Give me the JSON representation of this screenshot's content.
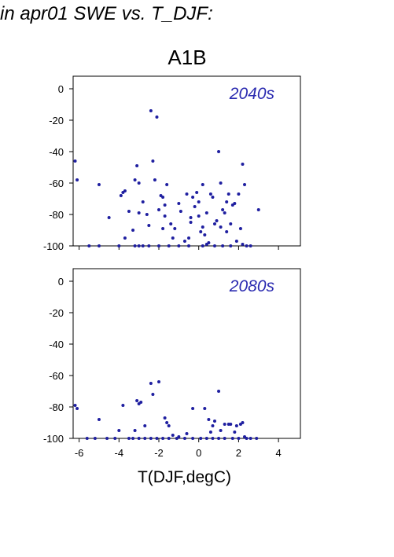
{
  "header": {
    "title": "in apr01 SWE vs. T_DJF:",
    "scenario": "A1B"
  },
  "chart_data": [
    {
      "type": "scatter",
      "panel_label": "2040s",
      "xlim": [
        -6.3,
        5.1
      ],
      "ylim": [
        -100,
        8
      ],
      "yticks": [
        0,
        -20,
        -40,
        -60,
        -80,
        -100
      ],
      "xticks": [
        -6,
        -4,
        -2,
        0,
        2,
        4
      ],
      "show_x_tick_labels": false,
      "xlabel": "",
      "ylabel": "",
      "grid": false,
      "marker_color": "#1f1fa0",
      "label_color": "#2a2ab0",
      "points": [
        [
          -6.2,
          -46
        ],
        [
          -6.1,
          -58
        ],
        [
          -5.0,
          -61
        ],
        [
          -4.5,
          -82
        ],
        [
          -3.9,
          -68
        ],
        [
          -3.8,
          -66
        ],
        [
          -3.7,
          -65
        ],
        [
          -3.7,
          -95
        ],
        [
          -3.5,
          -78
        ],
        [
          -3.3,
          -90
        ],
        [
          -3.2,
          -58
        ],
        [
          -3.1,
          -49
        ],
        [
          -3.0,
          -60
        ],
        [
          -3.0,
          -79
        ],
        [
          -2.8,
          -72
        ],
        [
          -2.6,
          -80
        ],
        [
          -2.5,
          -87
        ],
        [
          -2.4,
          -14
        ],
        [
          -2.3,
          -46
        ],
        [
          -2.2,
          -58
        ],
        [
          -2.1,
          -18
        ],
        [
          -2.0,
          -77
        ],
        [
          -1.9,
          -68
        ],
        [
          -1.8,
          -69
        ],
        [
          -1.8,
          -89
        ],
        [
          -1.7,
          -74
        ],
        [
          -1.7,
          -81
        ],
        [
          -1.6,
          -61
        ],
        [
          -1.4,
          -86
        ],
        [
          -1.3,
          -95
        ],
        [
          -1.2,
          -89
        ],
        [
          -1.0,
          -73
        ],
        [
          -0.9,
          -78
        ],
        [
          -0.7,
          -97
        ],
        [
          -0.6,
          -67
        ],
        [
          -0.5,
          -95
        ],
        [
          -0.4,
          -85
        ],
        [
          -0.4,
          -82
        ],
        [
          -0.3,
          -69
        ],
        [
          -0.2,
          -75
        ],
        [
          -0.1,
          -66
        ],
        [
          0.0,
          -81
        ],
        [
          0.0,
          -72
        ],
        [
          0.1,
          -91
        ],
        [
          0.2,
          -61
        ],
        [
          0.2,
          -88
        ],
        [
          0.3,
          -93
        ],
        [
          0.4,
          -79
        ],
        [
          0.5,
          -98
        ],
        [
          0.6,
          -67
        ],
        [
          0.7,
          -69
        ],
        [
          0.8,
          -86
        ],
        [
          0.9,
          -84
        ],
        [
          1.0,
          -40
        ],
        [
          1.1,
          -60
        ],
        [
          1.1,
          -88
        ],
        [
          1.2,
          -77
        ],
        [
          1.3,
          -79
        ],
        [
          1.4,
          -72
        ],
        [
          1.4,
          -91
        ],
        [
          1.5,
          -67
        ],
        [
          1.6,
          -86
        ],
        [
          1.7,
          -74
        ],
        [
          1.8,
          -73
        ],
        [
          1.9,
          -97
        ],
        [
          2.0,
          -67
        ],
        [
          2.1,
          -89
        ],
        [
          2.2,
          -48
        ],
        [
          2.3,
          -61
        ],
        [
          2.4,
          -100
        ],
        [
          2.6,
          -100
        ],
        [
          3.0,
          -77
        ],
        [
          -5.5,
          -100
        ],
        [
          -5.0,
          -100
        ],
        [
          -4.0,
          -100
        ],
        [
          -3.2,
          -100
        ],
        [
          -3.0,
          -100
        ],
        [
          -2.8,
          -100
        ],
        [
          -2.5,
          -100
        ],
        [
          -2.0,
          -100
        ],
        [
          -1.5,
          -100
        ],
        [
          -1.0,
          -100
        ],
        [
          -0.5,
          -100
        ],
        [
          0.2,
          -100
        ],
        [
          0.4,
          -99
        ],
        [
          0.8,
          -100
        ],
        [
          1.2,
          -100
        ],
        [
          1.6,
          -100
        ],
        [
          2.2,
          -99
        ]
      ]
    },
    {
      "type": "scatter",
      "panel_label": "2080s",
      "xlim": [
        -6.3,
        5.1
      ],
      "ylim": [
        -100,
        8
      ],
      "yticks": [
        0,
        -20,
        -40,
        -60,
        -80,
        -100
      ],
      "xticks": [
        -6,
        -4,
        -2,
        0,
        2,
        4
      ],
      "xtick_labels": [
        "-6",
        "-4",
        "-2",
        "0",
        "2",
        "4"
      ],
      "show_x_tick_labels": true,
      "xlabel": "T(DJF,degC)",
      "ylabel": "",
      "grid": false,
      "marker_color": "#1f1fa0",
      "label_color": "#2a2ab0",
      "points": [
        [
          -6.2,
          -79
        ],
        [
          -6.1,
          -81
        ],
        [
          -5.0,
          -88
        ],
        [
          -4.0,
          -95
        ],
        [
          -3.8,
          -79
        ],
        [
          -3.2,
          -95
        ],
        [
          -3.1,
          -76
        ],
        [
          -3.0,
          -78
        ],
        [
          -2.9,
          -77
        ],
        [
          -2.7,
          -92
        ],
        [
          -2.4,
          -65
        ],
        [
          -2.3,
          -72
        ],
        [
          -2.0,
          -64
        ],
        [
          -1.7,
          -87
        ],
        [
          -1.6,
          -90
        ],
        [
          -1.5,
          -92
        ],
        [
          -1.3,
          -98
        ],
        [
          -1.0,
          -99
        ],
        [
          -0.6,
          -97
        ],
        [
          -0.3,
          -81
        ],
        [
          0.3,
          -81
        ],
        [
          0.5,
          -88
        ],
        [
          0.6,
          -96
        ],
        [
          0.7,
          -92
        ],
        [
          0.8,
          -89
        ],
        [
          1.0,
          -70
        ],
        [
          1.1,
          -95
        ],
        [
          1.3,
          -91
        ],
        [
          1.5,
          -91
        ],
        [
          1.6,
          -91
        ],
        [
          1.8,
          -96
        ],
        [
          1.9,
          -92
        ],
        [
          2.1,
          -91
        ],
        [
          2.2,
          -90
        ],
        [
          2.3,
          -99
        ],
        [
          2.6,
          -100
        ],
        [
          -5.6,
          -100
        ],
        [
          -5.2,
          -100
        ],
        [
          -4.6,
          -100
        ],
        [
          -4.2,
          -100
        ],
        [
          -3.5,
          -100
        ],
        [
          -3.3,
          -100
        ],
        [
          -3.0,
          -100
        ],
        [
          -2.7,
          -100
        ],
        [
          -2.4,
          -100
        ],
        [
          -2.1,
          -100
        ],
        [
          -1.8,
          -100
        ],
        [
          -1.5,
          -100
        ],
        [
          -1.1,
          -100
        ],
        [
          -0.7,
          -100
        ],
        [
          -0.3,
          -100
        ],
        [
          0.1,
          -100
        ],
        [
          0.4,
          -100
        ],
        [
          0.7,
          -100
        ],
        [
          1.0,
          -100
        ],
        [
          1.3,
          -100
        ],
        [
          1.7,
          -100
        ],
        [
          2.0,
          -100
        ],
        [
          2.4,
          -100
        ],
        [
          2.9,
          -100
        ]
      ]
    }
  ]
}
